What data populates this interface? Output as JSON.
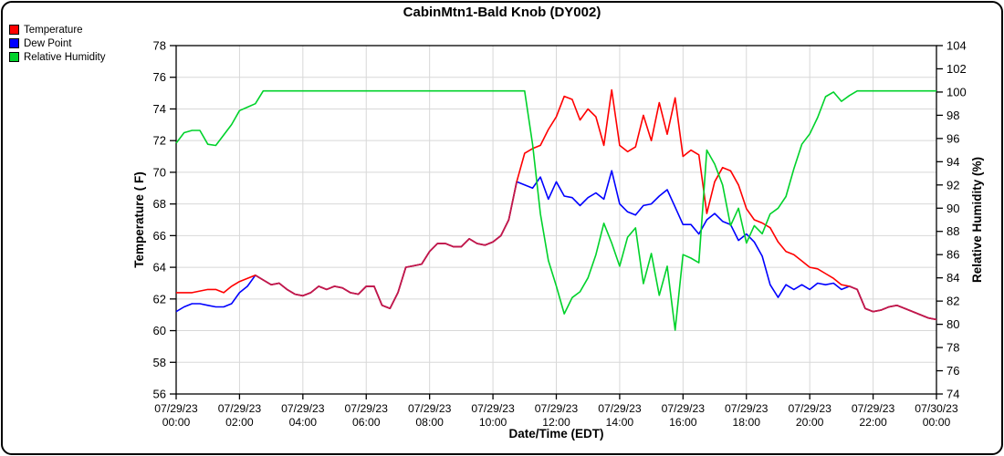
{
  "chart_data": {
    "type": "line",
    "title": "CabinMtn1-Bald Knob (DY002)",
    "xlabel": "Date/Time (EDT)",
    "ylabel_left": "Temperature ( F)",
    "ylabel_right": "Relative Humidity (%)",
    "left_axis": {
      "min": 56,
      "max": 78,
      "tick_step": 2
    },
    "right_axis": {
      "min": 74,
      "max": 104,
      "tick_step": 2
    },
    "x_range_hours": [
      0,
      24
    ],
    "grid": true,
    "legend_position": "top-left",
    "overlap_color": "#c2194b",
    "grid_color": "#d8d8d8",
    "x_ticks": [
      {
        "hour": 0,
        "date": "07/29/23",
        "time": "00:00"
      },
      {
        "hour": 2,
        "date": "07/29/23",
        "time": "02:00"
      },
      {
        "hour": 4,
        "date": "07/29/23",
        "time": "04:00"
      },
      {
        "hour": 6,
        "date": "07/29/23",
        "time": "06:00"
      },
      {
        "hour": 8,
        "date": "07/29/23",
        "time": "08:00"
      },
      {
        "hour": 10,
        "date": "07/29/23",
        "time": "10:00"
      },
      {
        "hour": 12,
        "date": "07/29/23",
        "time": "12:00"
      },
      {
        "hour": 14,
        "date": "07/29/23",
        "time": "14:00"
      },
      {
        "hour": 16,
        "date": "07/29/23",
        "time": "16:00"
      },
      {
        "hour": 18,
        "date": "07/29/23",
        "time": "18:00"
      },
      {
        "hour": 20,
        "date": "07/29/23",
        "time": "20:00"
      },
      {
        "hour": 22,
        "date": "07/29/23",
        "time": "22:00"
      },
      {
        "hour": 24,
        "date": "07/30/23",
        "time": "00:00"
      }
    ],
    "x_step_hours": 0.25,
    "series": [
      {
        "name": "Temperature",
        "axis": "left",
        "color": "#ff0000",
        "values": [
          62.4,
          62.4,
          62.4,
          62.5,
          62.6,
          62.6,
          62.4,
          62.8,
          63.1,
          63.3,
          63.5,
          63.2,
          62.9,
          63.0,
          62.6,
          62.3,
          62.2,
          62.4,
          62.8,
          62.6,
          62.8,
          62.7,
          62.4,
          62.3,
          62.8,
          62.8,
          61.6,
          61.4,
          62.4,
          64.0,
          64.1,
          64.2,
          65.0,
          65.5,
          65.5,
          65.3,
          65.3,
          65.8,
          65.5,
          65.4,
          65.6,
          66.0,
          67.0,
          69.4,
          71.2,
          71.5,
          71.7,
          72.7,
          73.5,
          74.8,
          74.6,
          73.3,
          74.0,
          73.5,
          71.7,
          75.2,
          71.7,
          71.3,
          71.6,
          73.6,
          72.0,
          74.4,
          72.4,
          74.7,
          71.0,
          71.4,
          71.1,
          67.4,
          69.4,
          70.3,
          70.1,
          69.2,
          67.7,
          67.0,
          66.8,
          66.5,
          65.6,
          65.0,
          64.8,
          64.4,
          64.0,
          63.9,
          63.6,
          63.3,
          62.9,
          62.8,
          62.6,
          61.4,
          61.2,
          61.3,
          61.5,
          61.6,
          61.4,
          61.2,
          61.0,
          60.8,
          60.7
        ]
      },
      {
        "name": "Dew Point",
        "axis": "left",
        "color": "#0000ff",
        "values": [
          61.2,
          61.5,
          61.7,
          61.7,
          61.6,
          61.5,
          61.5,
          61.7,
          62.4,
          62.8,
          63.5,
          63.2,
          62.9,
          63.0,
          62.6,
          62.3,
          62.2,
          62.4,
          62.8,
          62.6,
          62.8,
          62.7,
          62.4,
          62.3,
          62.8,
          62.8,
          61.6,
          61.4,
          62.4,
          64.0,
          64.1,
          64.2,
          65.0,
          65.5,
          65.5,
          65.3,
          65.3,
          65.8,
          65.5,
          65.4,
          65.6,
          66.0,
          67.0,
          69.4,
          69.2,
          69.0,
          69.7,
          68.3,
          69.4,
          68.5,
          68.4,
          67.9,
          68.4,
          68.7,
          68.3,
          70.1,
          68.0,
          67.5,
          67.3,
          67.9,
          68.0,
          68.5,
          68.9,
          67.8,
          66.7,
          66.7,
          66.1,
          67.0,
          67.4,
          66.9,
          66.7,
          65.7,
          66.1,
          65.6,
          64.7,
          62.9,
          62.1,
          62.9,
          62.6,
          62.9,
          62.6,
          63.0,
          62.9,
          63.0,
          62.6,
          62.8,
          62.6,
          61.4,
          61.2,
          61.3,
          61.5,
          61.6,
          61.4,
          61.2,
          61.0,
          60.8,
          60.7
        ]
      },
      {
        "name": "Relative Humidity",
        "axis": "right",
        "color": "#00d22b",
        "values": [
          95.6,
          96.5,
          96.7,
          96.7,
          95.5,
          95.4,
          96.3,
          97.2,
          98.4,
          98.7,
          99.0,
          100.1,
          100.1,
          100.1,
          100.1,
          100.1,
          100.1,
          100.1,
          100.1,
          100.1,
          100.1,
          100.1,
          100.1,
          100.1,
          100.1,
          100.1,
          100.1,
          100.1,
          100.1,
          100.1,
          100.1,
          100.1,
          100.1,
          100.1,
          100.1,
          100.1,
          100.1,
          100.1,
          100.1,
          100.1,
          100.1,
          100.1,
          100.1,
          100.1,
          100.1,
          95.5,
          89.5,
          85.5,
          83.3,
          80.9,
          82.3,
          82.8,
          84.0,
          86.0,
          88.7,
          87.0,
          85.0,
          87.5,
          88.3,
          83.5,
          86.1,
          82.5,
          85.0,
          79.5,
          86.0,
          85.7,
          85.3,
          95.0,
          93.8,
          92.0,
          88.5,
          90.0,
          87.0,
          88.5,
          87.8,
          89.5,
          90.0,
          91.0,
          93.4,
          95.5,
          96.4,
          97.8,
          99.6,
          100.0,
          99.2,
          99.7,
          100.1,
          100.1,
          100.1,
          100.1,
          100.1,
          100.1,
          100.1,
          100.1,
          100.1,
          100.1,
          100.1
        ]
      }
    ]
  },
  "legend": {
    "items": [
      {
        "label": "Temperature",
        "color": "#ff0000"
      },
      {
        "label": "Dew Point",
        "color": "#0000ff"
      },
      {
        "label": "Relative Humidity",
        "color": "#00d22b"
      }
    ]
  }
}
